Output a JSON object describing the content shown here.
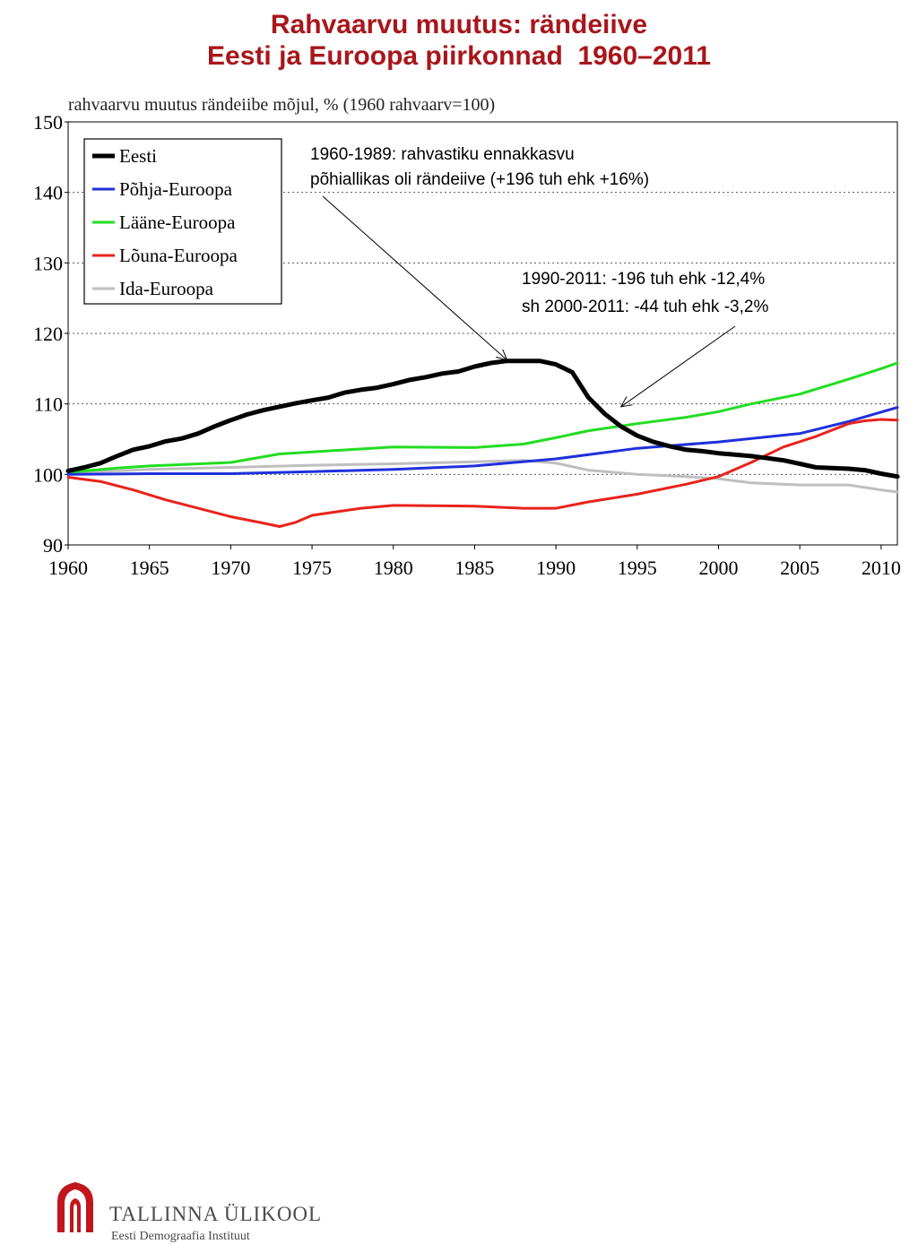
{
  "slide": {
    "title_lines": [
      "Rahvaarvu muutus: rändeiive",
      "Eesti ja Euroopa piirkonnad  1960–2011"
    ]
  },
  "chart_data": {
    "type": "line",
    "subtitle": "rahvaarvu muutus rändeiibe mõjul, % (1960 rahvaarv=100)",
    "xlabel": "",
    "ylabel": "",
    "xlim": [
      1960,
      2011
    ],
    "ylim": [
      90,
      150
    ],
    "y_ticks": [
      90,
      100,
      110,
      120,
      130,
      140,
      150
    ],
    "x_ticks": [
      1960,
      1965,
      1970,
      1975,
      1980,
      1985,
      1990,
      1995,
      2000,
      2005,
      2010
    ],
    "grid": "horizontal dotted",
    "legend_position": "top-left",
    "series": [
      {
        "name": "Eesti",
        "color": "#000000",
        "x": [
          1960,
          1961,
          1962,
          1963,
          1964,
          1965,
          1966,
          1967,
          1968,
          1969,
          1970,
          1971,
          1972,
          1973,
          1974,
          1975,
          1976,
          1977,
          1978,
          1979,
          1980,
          1981,
          1982,
          1983,
          1984,
          1985,
          1986,
          1987,
          1988,
          1989,
          1990,
          1991,
          1992,
          1993,
          1994,
          1995,
          1996,
          1997,
          1998,
          1999,
          2000,
          2001,
          2002,
          2003,
          2004,
          2005,
          2006,
          2007,
          2008,
          2009,
          2010,
          2011
        ],
        "values": [
          100.5,
          101,
          101.6,
          102.6,
          103.5,
          104,
          104.7,
          105.1,
          105.8,
          106.8,
          107.7,
          108.5,
          109.1,
          109.6,
          110.1,
          110.5,
          110.9,
          111.6,
          112,
          112.3,
          112.8,
          113.4,
          113.8,
          114.3,
          114.6,
          115.3,
          115.8,
          116.1,
          116.1,
          116.1,
          115.6,
          114.5,
          110.9,
          108.6,
          106.8,
          105.5,
          104.6,
          104,
          103.5,
          103.3,
          103,
          102.8,
          102.6,
          102.3,
          102,
          101.5,
          101,
          100.9,
          100.8,
          100.6,
          100.1,
          99.7
        ]
      },
      {
        "name": "Põhja-Euroopa",
        "color": "#1f2fdc",
        "x": [
          1960,
          1965,
          1970,
          1975,
          1980,
          1985,
          1990,
          1995,
          2000,
          2005,
          2008,
          2011
        ],
        "values": [
          100,
          100.1,
          100.1,
          100.4,
          100.7,
          101.2,
          102.2,
          103.7,
          104.6,
          105.8,
          107.5,
          109.5
        ]
      },
      {
        "name": "Lääne-Euroopa",
        "color": "#22dd22",
        "x": [
          1960,
          1963,
          1965,
          1970,
          1973,
          1975,
          1980,
          1985,
          1988,
          1990,
          1992,
          1995,
          1998,
          2000,
          2002,
          2005,
          2008,
          2010,
          2011
        ],
        "values": [
          100.3,
          100.9,
          101.2,
          101.7,
          102.9,
          103.2,
          103.9,
          103.8,
          104.3,
          105.2,
          106.2,
          107.2,
          108.1,
          108.9,
          110,
          111.4,
          113.5,
          115,
          115.8
        ]
      },
      {
        "name": "Lõuna-Euroopa",
        "color": "#e8231c",
        "x": [
          1960,
          1962,
          1964,
          1966,
          1968,
          1970,
          1972,
          1973,
          1974,
          1975,
          1978,
          1980,
          1985,
          1988,
          1990,
          1992,
          1995,
          1998,
          2000,
          2002,
          2004,
          2006,
          2008,
          2009,
          2010,
          2011
        ],
        "values": [
          99.6,
          99,
          97.8,
          96.4,
          95.2,
          94,
          93.1,
          92.6,
          93.2,
          94.2,
          95.2,
          95.6,
          95.5,
          95.2,
          95.2,
          96.1,
          97.2,
          98.6,
          99.7,
          101.7,
          103.9,
          105.4,
          107.2,
          107.6,
          107.8,
          107.7
        ]
      },
      {
        "name": "Ida-Euroopa",
        "color": "#bfbfbf",
        "x": [
          1960,
          1965,
          1970,
          1975,
          1980,
          1985,
          1988,
          1990,
          1992,
          1995,
          1998,
          2000,
          2002,
          2005,
          2008,
          2010,
          2011
        ],
        "values": [
          100.2,
          100.7,
          101,
          101.3,
          101.5,
          101.8,
          102,
          101.6,
          100.6,
          100,
          99.7,
          99.4,
          98.8,
          98.5,
          98.5,
          97.8,
          97.5
        ]
      }
    ],
    "annotations": [
      {
        "lines": [
          "1960-1989: rahvastiku ennakkasvu",
          "põhiallikas oli rändeiive (+196 tuh ehk +16%)"
        ],
        "arrow_to": [
          1987,
          116.2
        ]
      },
      {
        "lines": [
          "1990-2011: -196 tuh ehk -12,4%",
          "sh 2000-2011: -44 tuh ehk -3,2%"
        ],
        "arrow_to": [
          1994,
          109.6
        ]
      }
    ]
  },
  "footer": {
    "org_name": "TALLINNA ÜLIKOOL",
    "institute": "Eesti Demograafia Instituut",
    "logo_color": "#c0161c"
  }
}
